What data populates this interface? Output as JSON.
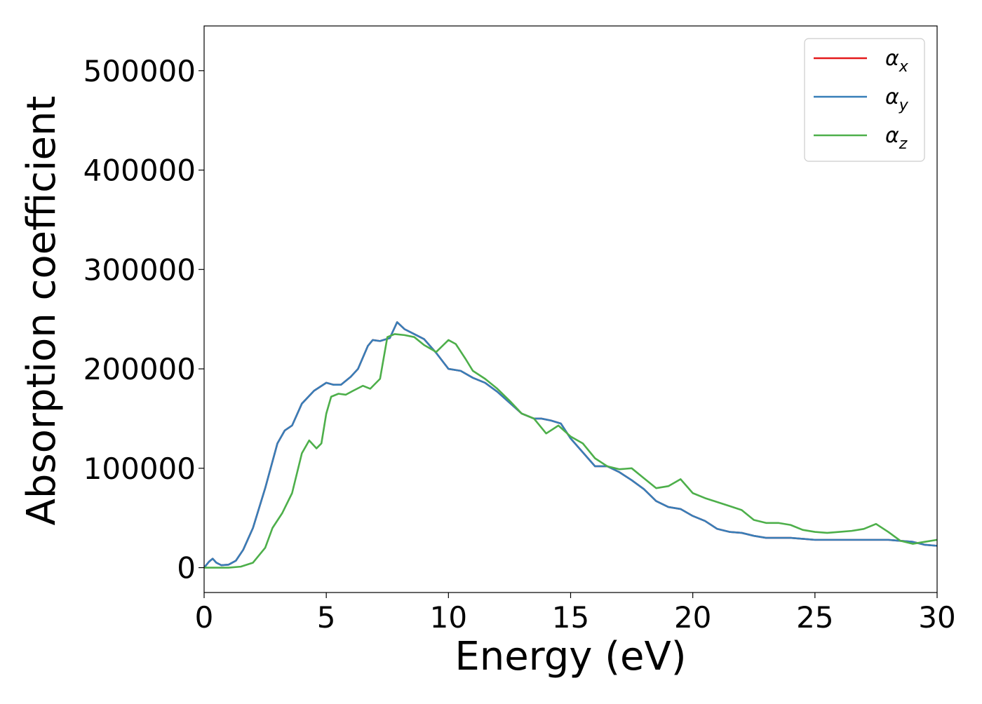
{
  "chart_data": {
    "type": "line",
    "title": "",
    "xlabel": "Energy (eV)",
    "ylabel": "Absorption coefficient",
    "xlim": [
      0,
      30
    ],
    "ylim": [
      -25000,
      545000
    ],
    "xticks": [
      0,
      5,
      10,
      15,
      20,
      25,
      30
    ],
    "xtick_labels": [
      "0",
      "5",
      "10",
      "15",
      "20",
      "25",
      "30"
    ],
    "yticks": [
      0,
      100000,
      200000,
      300000,
      400000,
      500000
    ],
    "ytick_labels": [
      "0",
      "100000",
      "200000",
      "300000",
      "400000",
      "500000"
    ],
    "grid": false,
    "legend_position": "top-right",
    "series": [
      {
        "name": "α_x",
        "label_base": "α",
        "label_sub": "x",
        "color": "#e41a1c",
        "x": [
          0,
          0.2,
          0.35,
          0.5,
          0.7,
          1.0,
          1.3,
          1.6,
          2.0,
          2.5,
          3.0,
          3.3,
          3.6,
          4.0,
          4.5,
          5.0,
          5.3,
          5.6,
          6.0,
          6.3,
          6.7,
          6.9,
          7.2,
          7.6,
          7.9,
          8.2,
          8.6,
          9.0,
          9.5,
          10.0,
          10.5,
          11.0,
          11.5,
          12.0,
          12.5,
          13.0,
          13.5,
          13.8,
          14.2,
          14.6,
          15.0,
          15.5,
          16.0,
          16.5,
          17.0,
          17.5,
          18.0,
          18.5,
          19.0,
          19.5,
          20.0,
          20.5,
          21.0,
          21.5,
          22.0,
          22.5,
          23.0,
          23.5,
          24.0,
          24.5,
          25.0,
          25.5,
          26.0,
          26.5,
          27.0,
          27.5,
          28.0,
          28.5,
          29.0,
          29.5,
          30.0
        ],
        "y": [
          0,
          6000,
          9000,
          5000,
          2500,
          3000,
          7000,
          18000,
          40000,
          80000,
          125000,
          138000,
          143000,
          165000,
          178000,
          186000,
          184000,
          184000,
          192000,
          200000,
          223000,
          229000,
          228000,
          231000,
          247000,
          240000,
          235000,
          230000,
          216000,
          200000,
          198000,
          191000,
          186000,
          177000,
          166000,
          155000,
          150000,
          150000,
          148000,
          145000,
          130000,
          116000,
          102000,
          102000,
          96000,
          88000,
          79000,
          67000,
          61000,
          59000,
          52000,
          47000,
          39000,
          36000,
          35000,
          32000,
          30000,
          30000,
          30000,
          29000,
          28000,
          28000,
          28000,
          28000,
          28000,
          28000,
          28000,
          27000,
          26000,
          23000,
          22000
        ]
      },
      {
        "name": "α_y",
        "label_base": "α",
        "label_sub": "y",
        "color": "#377eb8",
        "x": [
          0,
          0.2,
          0.35,
          0.5,
          0.7,
          1.0,
          1.3,
          1.6,
          2.0,
          2.5,
          3.0,
          3.3,
          3.6,
          4.0,
          4.5,
          5.0,
          5.3,
          5.6,
          6.0,
          6.3,
          6.7,
          6.9,
          7.2,
          7.6,
          7.9,
          8.2,
          8.6,
          9.0,
          9.5,
          10.0,
          10.5,
          11.0,
          11.5,
          12.0,
          12.5,
          13.0,
          13.5,
          13.8,
          14.2,
          14.6,
          15.0,
          15.5,
          16.0,
          16.5,
          17.0,
          17.5,
          18.0,
          18.5,
          19.0,
          19.5,
          20.0,
          20.5,
          21.0,
          21.5,
          22.0,
          22.5,
          23.0,
          23.5,
          24.0,
          24.5,
          25.0,
          25.5,
          26.0,
          26.5,
          27.0,
          27.5,
          28.0,
          28.5,
          29.0,
          29.5,
          30.0
        ],
        "y": [
          0,
          6000,
          9000,
          5000,
          2500,
          3000,
          7000,
          18000,
          40000,
          80000,
          125000,
          138000,
          143000,
          165000,
          178000,
          186000,
          184000,
          184000,
          192000,
          200000,
          223000,
          229000,
          228000,
          231000,
          247000,
          240000,
          235000,
          230000,
          216000,
          200000,
          198000,
          191000,
          186000,
          177000,
          166000,
          155000,
          150000,
          150000,
          148000,
          145000,
          130000,
          116000,
          102000,
          102000,
          96000,
          88000,
          79000,
          67000,
          61000,
          59000,
          52000,
          47000,
          39000,
          36000,
          35000,
          32000,
          30000,
          30000,
          30000,
          29000,
          28000,
          28000,
          28000,
          28000,
          28000,
          28000,
          28000,
          27000,
          26000,
          23000,
          22000
        ]
      },
      {
        "name": "α_z",
        "label_base": "α",
        "label_sub": "z",
        "color": "#4daf4a",
        "x": [
          0,
          0.5,
          1.0,
          1.5,
          2.0,
          2.5,
          2.8,
          3.2,
          3.6,
          4.0,
          4.3,
          4.6,
          4.8,
          5.0,
          5.2,
          5.5,
          5.8,
          6.1,
          6.5,
          6.8,
          7.2,
          7.5,
          7.8,
          8.2,
          8.6,
          9.0,
          9.5,
          10.0,
          10.3,
          10.7,
          11.0,
          11.5,
          12.0,
          12.5,
          13.0,
          13.5,
          14.0,
          14.5,
          15.0,
          15.5,
          16.0,
          16.5,
          17.0,
          17.5,
          18.0,
          18.5,
          19.0,
          19.5,
          20.0,
          20.5,
          21.0,
          21.5,
          22.0,
          22.5,
          23.0,
          23.5,
          24.0,
          24.5,
          25.0,
          25.5,
          26.0,
          26.5,
          27.0,
          27.5,
          28.0,
          28.5,
          29.0,
          29.5,
          30.0
        ],
        "y": [
          0,
          0,
          0,
          1000,
          5000,
          20000,
          40000,
          55000,
          75000,
          115000,
          128000,
          120000,
          125000,
          155000,
          172000,
          175000,
          174000,
          178000,
          183000,
          180000,
          190000,
          232000,
          235000,
          234000,
          232000,
          224000,
          217000,
          229000,
          225000,
          210000,
          198000,
          190000,
          180000,
          168000,
          155000,
          150000,
          135000,
          143000,
          132000,
          125000,
          110000,
          102000,
          99000,
          100000,
          90000,
          80000,
          82000,
          89000,
          75000,
          70000,
          66000,
          62000,
          58000,
          48000,
          45000,
          45000,
          43000,
          38000,
          36000,
          35000,
          36000,
          37000,
          39000,
          44000,
          36000,
          27000,
          24000,
          26000,
          28000
        ]
      }
    ]
  }
}
